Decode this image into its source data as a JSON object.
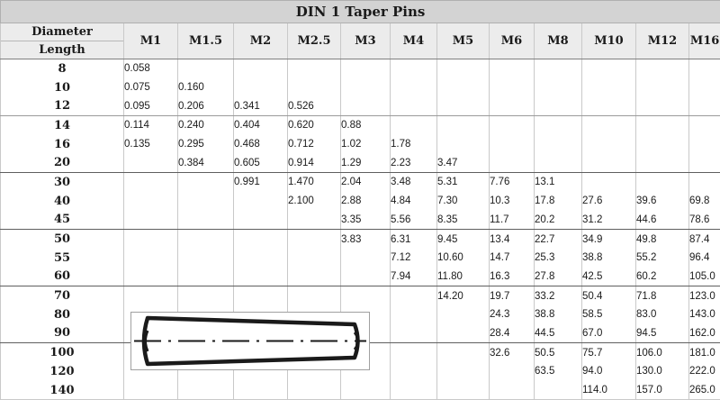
{
  "title": "DIN 1 Taper Pins",
  "header": {
    "diameter_label": "Diameter",
    "length_label": "Length",
    "columns": [
      "M1",
      "M1.5",
      "M2",
      "M2.5",
      "M3",
      "M4",
      "M5",
      "M6",
      "M8",
      "M10",
      "M12",
      "M16"
    ]
  },
  "rows": [
    {
      "length": "8",
      "values": [
        "0.058",
        "",
        "",
        "",
        "",
        "",
        "",
        "",
        "",
        "",
        "",
        ""
      ]
    },
    {
      "length": "10",
      "values": [
        "0.075",
        "0.160",
        "",
        "",
        "",
        "",
        "",
        "",
        "",
        "",
        "",
        ""
      ]
    },
    {
      "length": "12",
      "values": [
        "0.095",
        "0.206",
        "0.341",
        "0.526",
        "",
        "",
        "",
        "",
        "",
        "",
        "",
        ""
      ]
    },
    {
      "length": "14",
      "values": [
        "0.114",
        "0.240",
        "0.404",
        "0.620",
        "0.88",
        "",
        "",
        "",
        "",
        "",
        "",
        ""
      ]
    },
    {
      "length": "16",
      "values": [
        "0.135",
        "0.295",
        "0.468",
        "0.712",
        "1.02",
        "1.78",
        "",
        "",
        "",
        "",
        "",
        ""
      ]
    },
    {
      "length": "20",
      "values": [
        "",
        "0.384",
        "0.605",
        "0.914",
        "1.29",
        "2.23",
        "3.47",
        "",
        "",
        "",
        "",
        ""
      ]
    },
    {
      "length": "30",
      "values": [
        "",
        "",
        "0.991",
        "1.470",
        "2.04",
        "3.48",
        "5.31",
        "7.76",
        "13.1",
        "",
        "",
        ""
      ]
    },
    {
      "length": "40",
      "values": [
        "",
        "",
        "",
        "2.100",
        "2.88",
        "4.84",
        "7.30",
        "10.3",
        "17.8",
        "27.6",
        "39.6",
        "69.8"
      ]
    },
    {
      "length": "45",
      "values": [
        "",
        "",
        "",
        "",
        "3.35",
        "5.56",
        "8.35",
        "11.7",
        "20.2",
        "31.2",
        "44.6",
        "78.6"
      ]
    },
    {
      "length": "50",
      "values": [
        "",
        "",
        "",
        "",
        "3.83",
        "6.31",
        "9.45",
        "13.4",
        "22.7",
        "34.9",
        "49.8",
        "87.4"
      ]
    },
    {
      "length": "55",
      "values": [
        "",
        "",
        "",
        "",
        "",
        "7.12",
        "10.60",
        "14.7",
        "25.3",
        "38.8",
        "55.2",
        "96.4"
      ]
    },
    {
      "length": "60",
      "values": [
        "",
        "",
        "",
        "",
        "",
        "7.94",
        "11.80",
        "16.3",
        "27.8",
        "42.5",
        "60.2",
        "105.0"
      ]
    },
    {
      "length": "70",
      "values": [
        "",
        "",
        "",
        "",
        "",
        "",
        "14.20",
        "19.7",
        "33.2",
        "50.4",
        "71.8",
        "123.0"
      ]
    },
    {
      "length": "80",
      "values": [
        "",
        "",
        "",
        "",
        "",
        "",
        "",
        "24.3",
        "38.8",
        "58.5",
        "83.0",
        "143.0"
      ]
    },
    {
      "length": "90",
      "values": [
        "",
        "",
        "",
        "",
        "",
        "",
        "",
        "28.4",
        "44.5",
        "67.0",
        "94.5",
        "162.0"
      ]
    },
    {
      "length": "100",
      "values": [
        "",
        "",
        "",
        "",
        "",
        "",
        "",
        "32.6",
        "50.5",
        "75.7",
        "106.0",
        "181.0"
      ]
    },
    {
      "length": "120",
      "values": [
        "",
        "",
        "",
        "",
        "",
        "",
        "",
        "",
        "63.5",
        "94.0",
        "130.0",
        "222.0"
      ]
    },
    {
      "length": "140",
      "values": [
        "",
        "",
        "",
        "",
        "",
        "",
        "",
        "",
        "",
        "114.0",
        "157.0",
        "265.0"
      ]
    }
  ],
  "figure": {
    "icon": "taper-pin-drawing"
  }
}
